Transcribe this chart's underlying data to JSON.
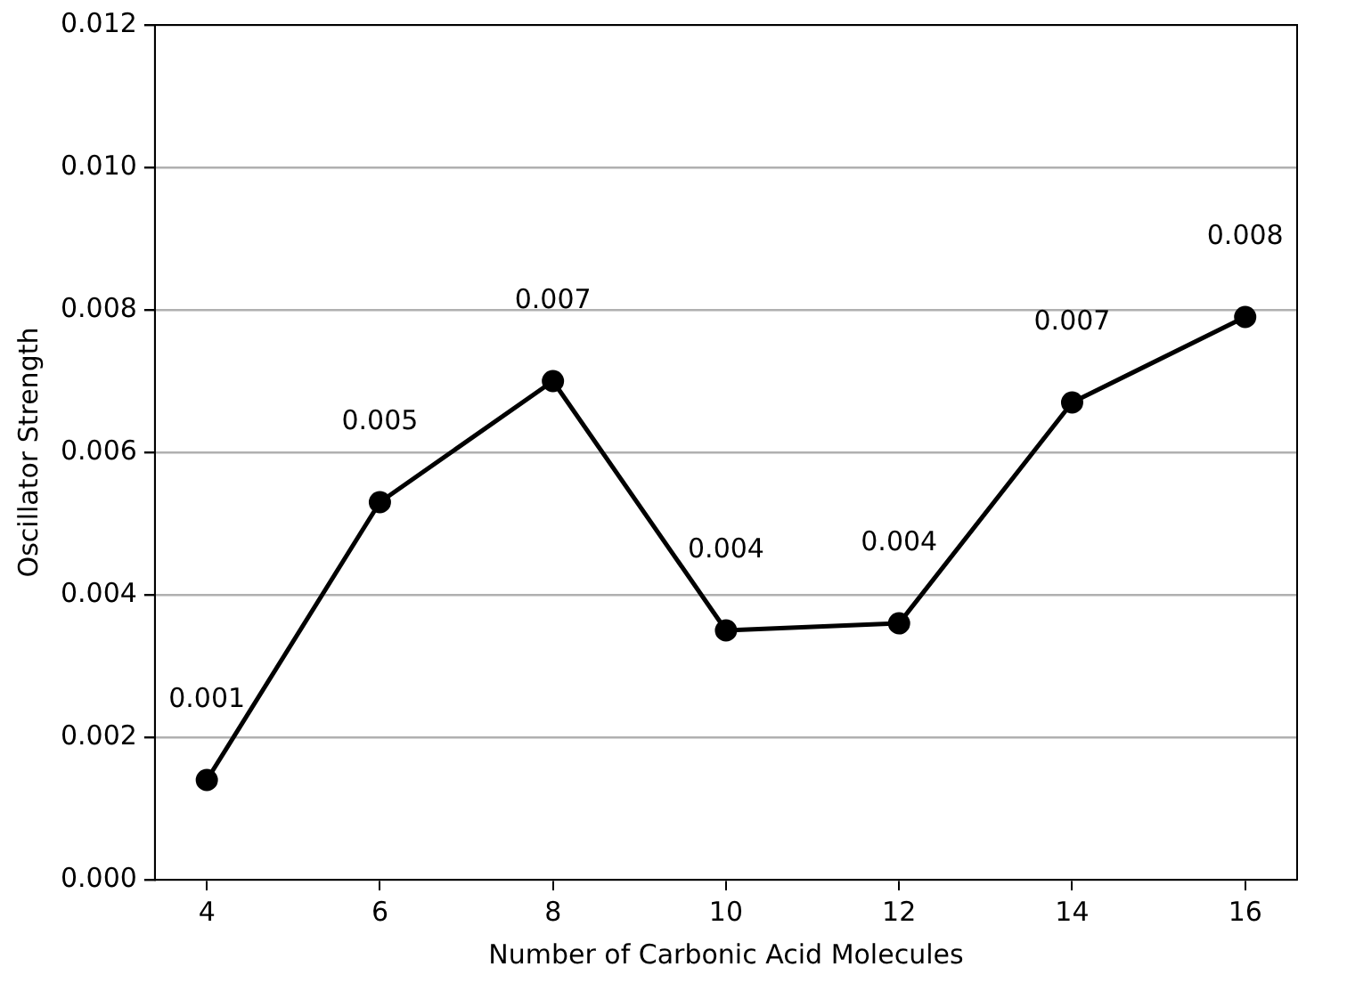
{
  "chart_data": {
    "type": "line",
    "xlabel": "Number of Carbonic Acid Molecules",
    "ylabel": "Oscillator Strength",
    "x": [
      4,
      6,
      8,
      10,
      12,
      14,
      16
    ],
    "series": [
      {
        "color": "#000000",
        "values": [
          0.0014,
          0.0053,
          0.007,
          0.0035,
          0.0036,
          0.0067,
          0.0079
        ],
        "value_labels": [
          "0.001",
          "0.005",
          "0.007",
          "0.004",
          "0.004",
          "0.007",
          "0.008"
        ]
      }
    ],
    "xlim": [
      3.4,
      16.6
    ],
    "xticks": [
      4,
      6,
      8,
      10,
      12,
      14,
      16
    ],
    "ylim": [
      0,
      0.012
    ],
    "yticks": [
      {
        "value": 0,
        "label": "0.000"
      },
      {
        "value": 0.002,
        "label": "0.002"
      },
      {
        "value": 0.004,
        "label": "0.004"
      },
      {
        "value": 0.006,
        "label": "0.006"
      },
      {
        "value": 0.008,
        "label": "0.008"
      },
      {
        "value": 0.01,
        "label": "0.010"
      },
      {
        "value": 0.012,
        "label": "0.012"
      }
    ],
    "grid": "y",
    "legend": false,
    "marker": "circle",
    "line_style": "solid"
  }
}
